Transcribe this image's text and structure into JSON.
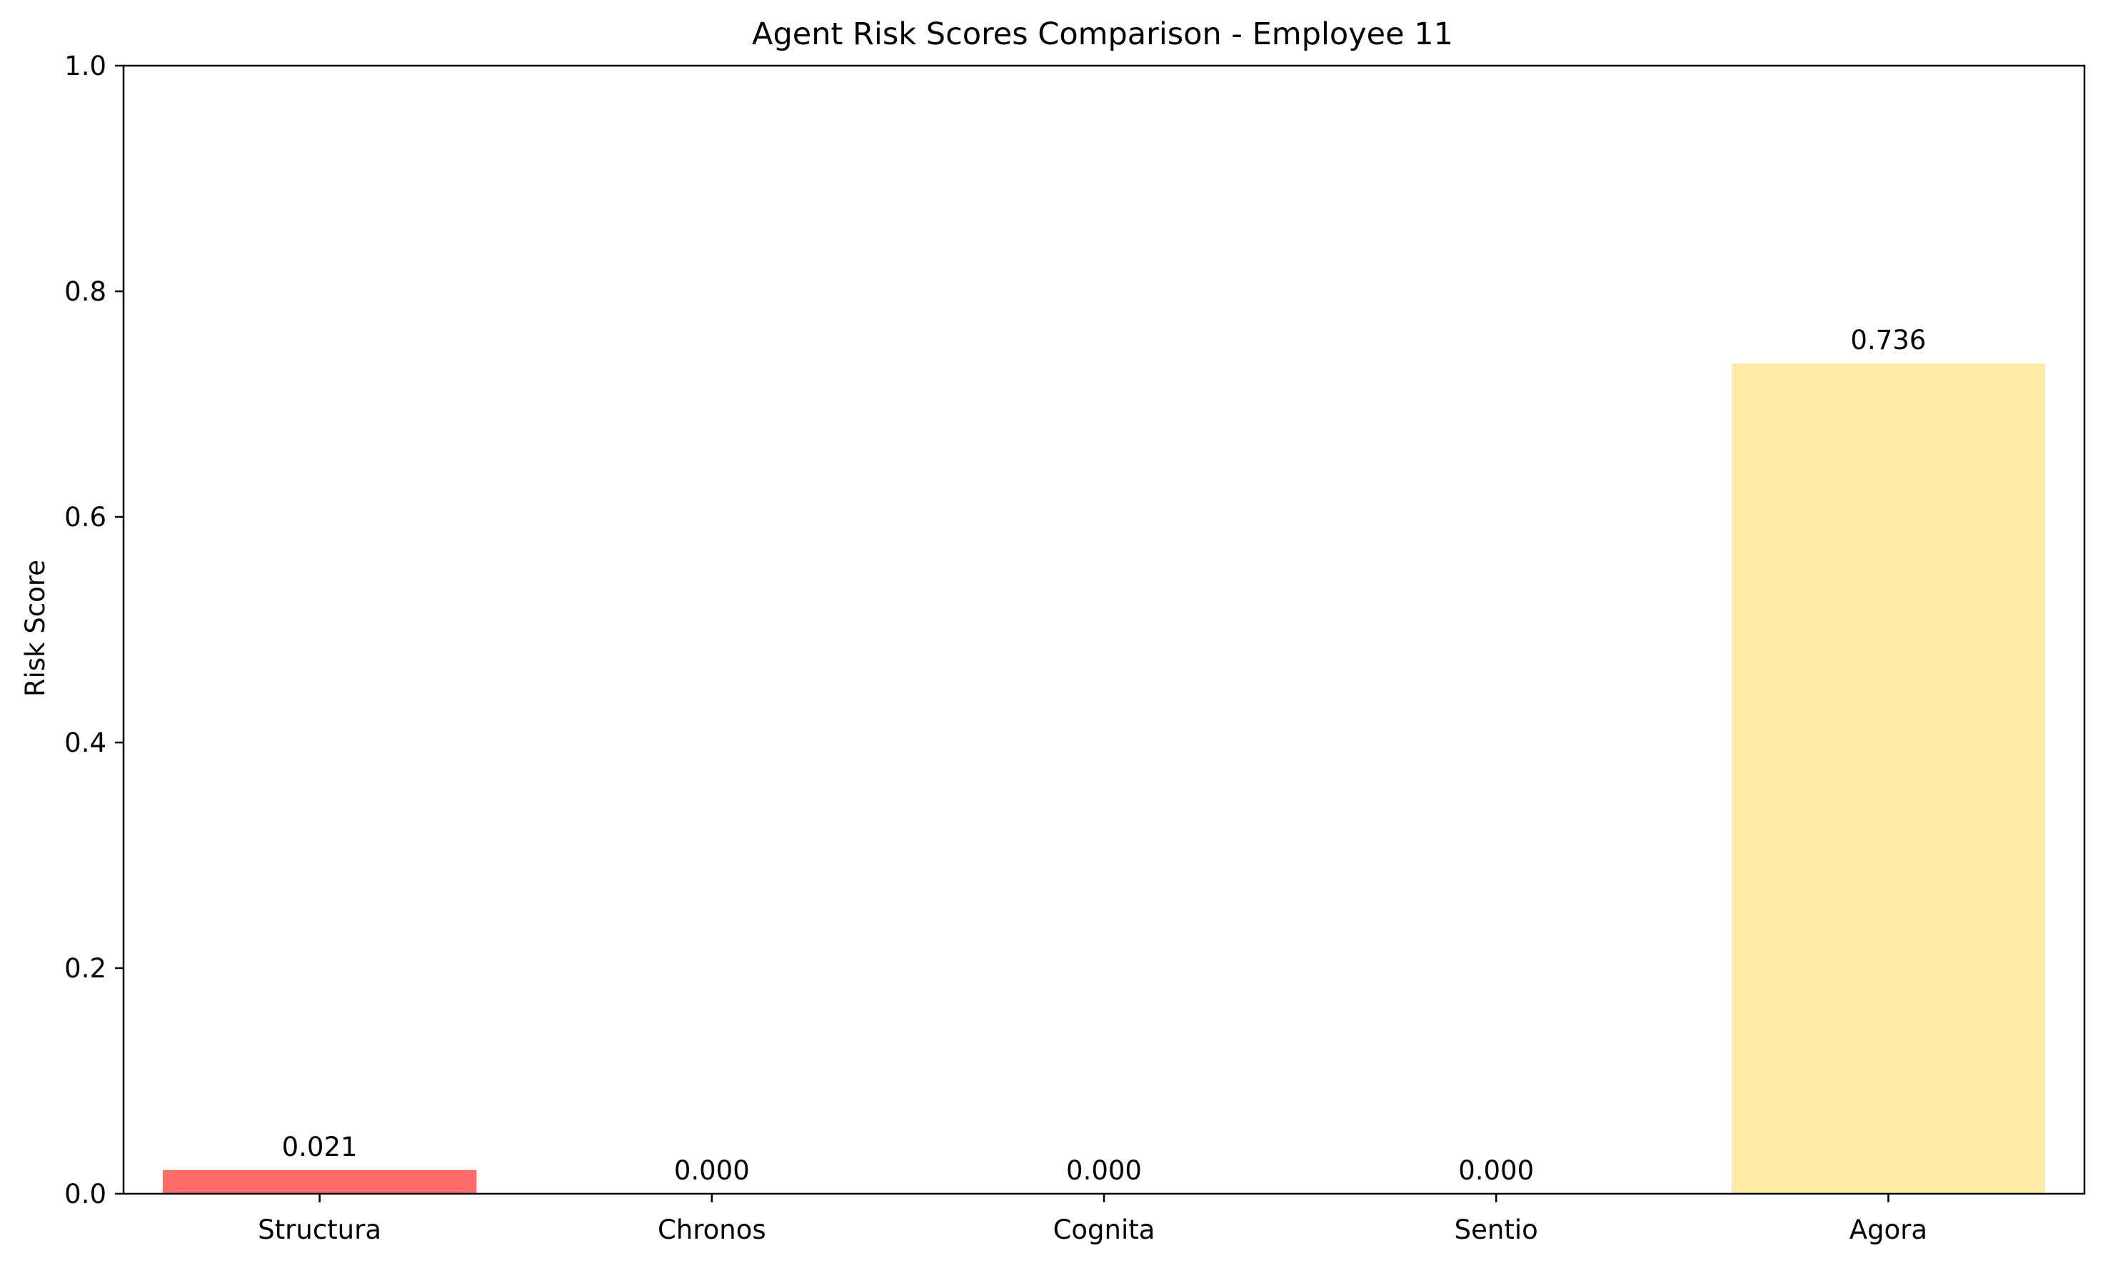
{
  "chart_data": {
    "type": "bar",
    "title": "Agent Risk Scores Comparison - Employee 11",
    "xlabel": "",
    "ylabel": "Risk Score",
    "categories": [
      "Structura",
      "Chronos",
      "Cognita",
      "Sentio",
      "Agora"
    ],
    "values": [
      0.021,
      0.0,
      0.0,
      0.0,
      0.736
    ],
    "value_labels": [
      "0.021",
      "0.000",
      "0.000",
      "0.000",
      "0.736"
    ],
    "colors": [
      "#ff6b6b",
      "#4ecdc4",
      "#45b7d1",
      "#96ceb4",
      "#ffeaa7"
    ],
    "ylim": [
      0,
      1
    ],
    "yticks": [
      0.0,
      0.2,
      0.4,
      0.6,
      0.8,
      1.0
    ],
    "ytick_labels": [
      "0.0",
      "0.2",
      "0.4",
      "0.6",
      "0.8",
      "1.0"
    ],
    "grid": false,
    "legend": "none"
  }
}
